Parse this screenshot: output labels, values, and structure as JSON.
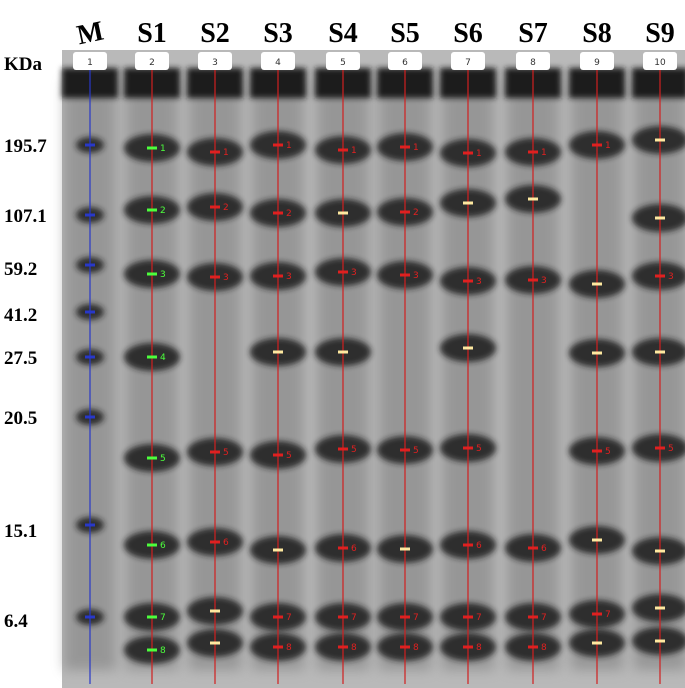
{
  "axis_label": "KDa",
  "markers": [
    "195.7",
    "107.1",
    "59.2",
    "41.2",
    "27.5",
    "20.5",
    "15.1",
    "6.4"
  ],
  "lanes": [
    {
      "name": "M",
      "number": "1",
      "bands": []
    },
    {
      "name": "S1",
      "number": "2",
      "bands": [
        "1",
        "2",
        "3",
        "4",
        "5",
        "6",
        "7",
        "8"
      ]
    },
    {
      "name": "S2",
      "number": "3",
      "bands": [
        "1",
        "2",
        "3",
        "5",
        "6"
      ]
    },
    {
      "name": "S3",
      "number": "4",
      "bands": [
        "1",
        "2",
        "3",
        "5",
        "7",
        "8"
      ]
    },
    {
      "name": "S4",
      "number": "5",
      "bands": [
        "1",
        "3",
        "5",
        "6",
        "7",
        "8"
      ]
    },
    {
      "name": "S5",
      "number": "6",
      "bands": [
        "1",
        "2",
        "3",
        "5",
        "7",
        "8"
      ]
    },
    {
      "name": "S6",
      "number": "7",
      "bands": [
        "1",
        "3",
        "5",
        "6",
        "7",
        "8"
      ]
    },
    {
      "name": "S7",
      "number": "8",
      "bands": [
        "1",
        "3",
        "6",
        "7",
        "8"
      ]
    },
    {
      "name": "S8",
      "number": "9",
      "bands": [
        "1",
        "5",
        "7"
      ]
    },
    {
      "name": "S9",
      "number": "10",
      "bands": [
        "3",
        "5"
      ]
    }
  ]
}
